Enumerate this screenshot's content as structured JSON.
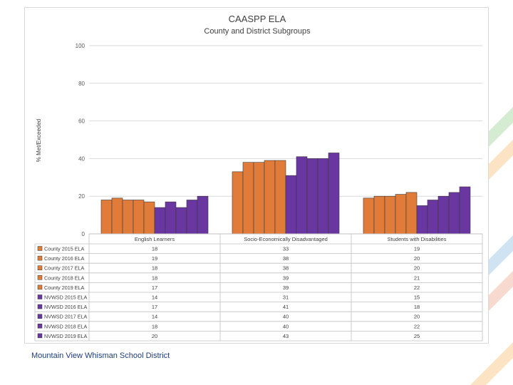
{
  "footer": {
    "text": "Mountain View Whisman School District"
  },
  "chart_data": {
    "type": "bar",
    "title": "CAASPP ELA",
    "subtitle": "County and District Subgroups",
    "xlabel": "",
    "ylabel": "% Met/Exceeded",
    "ylim": [
      0,
      100
    ],
    "yticks": [
      0,
      20,
      40,
      60,
      80,
      100
    ],
    "grid": true,
    "legend": "data-table",
    "categories": [
      "English Learners",
      "Socio-Economically Disadvantaged",
      "Students with Disabilities"
    ],
    "series": [
      {
        "name": "County 2015 ELA",
        "color": "#e07b39",
        "values": [
          18,
          33,
          19
        ]
      },
      {
        "name": "County 2016 ELA",
        "color": "#e07b39",
        "values": [
          19,
          38,
          20
        ]
      },
      {
        "name": "County 2017 ELA",
        "color": "#e07b39",
        "values": [
          18,
          38,
          20
        ]
      },
      {
        "name": "County 2018 ELA",
        "color": "#e07b39",
        "values": [
          18,
          39,
          21
        ]
      },
      {
        "name": "County 2019 ELA",
        "color": "#e07b39",
        "values": [
          17,
          39,
          22
        ]
      },
      {
        "name": "NVWSD 2015 ELA",
        "color": "#6a36a0",
        "values": [
          14,
          31,
          15
        ]
      },
      {
        "name": "NVWSD 2016 ELA",
        "color": "#6a36a0",
        "values": [
          17,
          41,
          18
        ]
      },
      {
        "name": "NVWSD 2017 ELA",
        "color": "#6a36a0",
        "values": [
          14,
          40,
          20
        ]
      },
      {
        "name": "NVWSD 2018 ELA",
        "color": "#6a36a0",
        "values": [
          18,
          40,
          22
        ]
      },
      {
        "name": "NVWSD 2019 ELA",
        "color": "#6a36a0",
        "values": [
          20,
          43,
          25
        ]
      }
    ]
  }
}
